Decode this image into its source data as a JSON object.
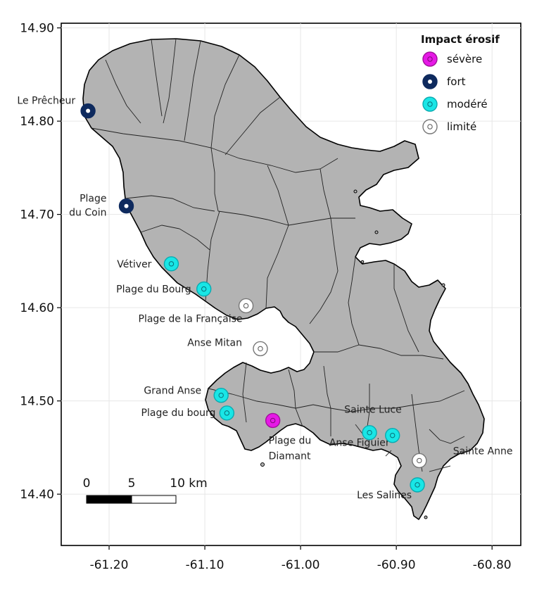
{
  "map": {
    "x_ticks": [
      "-61.20",
      "-61.10",
      "-61.00",
      "-60.90",
      "-60.80"
    ],
    "y_ticks": [
      "14.90",
      "14.80",
      "14.70",
      "14.60",
      "14.50",
      "14.40"
    ],
    "x_range": [
      -61.25,
      -60.77
    ],
    "y_range": [
      14.345,
      14.905
    ]
  },
  "legend": {
    "title": "Impact érosif",
    "items": [
      {
        "key": "severe",
        "label": "sévère",
        "fill": "#e619e6",
        "ring": "#a0109a",
        "dot": "#ffffff"
      },
      {
        "key": "fort",
        "label": "fort",
        "fill": "#0e2a5e",
        "ring": "#0e2a5e",
        "dot": "#ffffff"
      },
      {
        "key": "modere",
        "label": "modéré",
        "fill": "#19e6e6",
        "ring": "#0aaab0",
        "dot": "#ffffff"
      },
      {
        "key": "limite",
        "label": "limité",
        "fill": "#ffffff",
        "ring": "#777777",
        "dot": "#ffffff"
      }
    ]
  },
  "scale_bar": {
    "labels": [
      "0",
      "5",
      "10 km"
    ]
  },
  "sites": [
    {
      "name": "Le Prêcheur",
      "lines": [
        "Le Prêcheur"
      ],
      "lon": -61.222,
      "lat": 14.811,
      "impact": "fort"
    },
    {
      "name": "Plage du Coin",
      "lines": [
        "Plage",
        "du Coin"
      ],
      "lon": -61.182,
      "lat": 14.709,
      "impact": "fort"
    },
    {
      "name": "Vétiver",
      "lines": [
        "Vétiver"
      ],
      "lon": -61.135,
      "lat": 14.647,
      "impact": "modere"
    },
    {
      "name": "Plage du Bourg",
      "lines": [
        "Plage du Bourg"
      ],
      "lon": -61.101,
      "lat": 14.62,
      "impact": "modere"
    },
    {
      "name": "Plage de la Française",
      "lines": [
        "Plage de la Française"
      ],
      "lon": -61.057,
      "lat": 14.602,
      "impact": "limite"
    },
    {
      "name": "Anse Mitan",
      "lines": [
        "Anse Mitan"
      ],
      "lon": -61.042,
      "lat": 14.556,
      "impact": "limite"
    },
    {
      "name": "Grand Anse",
      "lines": [
        "Grand Anse"
      ],
      "lon": -61.083,
      "lat": 14.506,
      "impact": "modere"
    },
    {
      "name": "Plage du bourg",
      "lines": [
        "Plage du bourg"
      ],
      "lon": -61.077,
      "lat": 14.487,
      "impact": "modere"
    },
    {
      "name": "Plage du Diamant",
      "lines": [
        "Plage du",
        "Diamant"
      ],
      "lon": -61.029,
      "lat": 14.479,
      "impact": "severe"
    },
    {
      "name": "Sainte Luce",
      "lines": [
        "Sainte Luce"
      ],
      "lon": -60.928,
      "lat": 14.466,
      "impact": "modere"
    },
    {
      "name": "Anse Figuier",
      "lines": [
        "Anse Figuier"
      ],
      "lon": -60.904,
      "lat": 14.463,
      "impact": "modere"
    },
    {
      "name": "Sainte Anne",
      "lines": [
        "Sainte Anne"
      ],
      "lon": -60.876,
      "lat": 14.436,
      "impact": "limite"
    },
    {
      "name": "Les Salines",
      "lines": [
        "Les Salines"
      ],
      "lon": -60.878,
      "lat": 14.41,
      "impact": "modere"
    }
  ]
}
